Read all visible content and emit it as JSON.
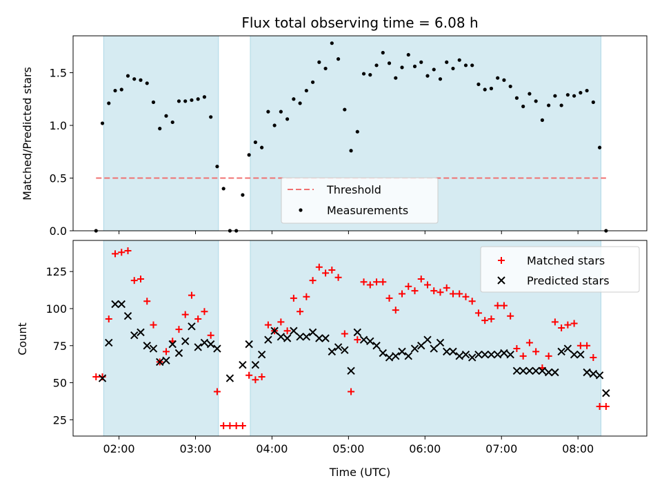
{
  "chart_data": [
    {
      "type": "scatter",
      "title": "Flux total observing time = 6.08 h",
      "xlabel": "",
      "ylabel": "Matched/Predicted stars",
      "ylim": [
        0,
        1.85
      ],
      "yticks": [
        "0.0",
        "0.5",
        "1.0",
        "1.5"
      ],
      "xlim": [
        "01:24",
        "08:54"
      ],
      "x_tick_labels": [
        "02:00",
        "03:00",
        "04:00",
        "05:00",
        "06:00",
        "07:00",
        "08:00"
      ],
      "shaded_intervals": [
        [
          "01:48",
          "03:18"
        ],
        [
          "03:43",
          "08:18"
        ]
      ],
      "threshold": {
        "name": "Threshold",
        "value": 0.5,
        "color": "#f07070"
      },
      "legend_position": "lower-center",
      "series": [
        {
          "name": "Measurements",
          "color": "#000000",
          "x": [
            "01:42",
            "01:47",
            "01:52",
            "01:57",
            "02:02",
            "02:07",
            "02:12",
            "02:17",
            "02:22",
            "02:27",
            "02:32",
            "02:37",
            "02:42",
            "02:47",
            "02:52",
            "02:57",
            "03:02",
            "03:07",
            "03:12",
            "03:17",
            "03:22",
            "03:27",
            "03:32",
            "03:37",
            "03:42",
            "03:47",
            "03:52",
            "03:57",
            "04:02",
            "04:07",
            "04:12",
            "04:17",
            "04:22",
            "04:27",
            "04:32",
            "04:37",
            "04:42",
            "04:47",
            "04:52",
            "04:57",
            "05:02",
            "05:07",
            "05:12",
            "05:17",
            "05:22",
            "05:27",
            "05:32",
            "05:37",
            "05:42",
            "05:47",
            "05:52",
            "05:57",
            "06:02",
            "06:07",
            "06:12",
            "06:17",
            "06:22",
            "06:27",
            "06:32",
            "06:37",
            "06:42",
            "06:47",
            "06:52",
            "06:57",
            "07:02",
            "07:07",
            "07:12",
            "07:17",
            "07:22",
            "07:27",
            "07:32",
            "07:37",
            "07:42",
            "07:47",
            "07:52",
            "07:57",
            "08:02",
            "08:07",
            "08:12",
            "08:17",
            "08:22"
          ],
          "y": [
            0.0,
            1.02,
            1.21,
            1.33,
            1.34,
            1.47,
            1.44,
            1.43,
            1.4,
            1.22,
            0.97,
            1.09,
            1.03,
            1.23,
            1.23,
            1.24,
            1.25,
            1.27,
            1.08,
            0.61,
            0.4,
            0.0,
            0.0,
            0.34,
            0.72,
            0.84,
            0.79,
            1.13,
            1.0,
            1.13,
            1.06,
            1.25,
            1.21,
            1.33,
            1.41,
            1.6,
            1.54,
            1.78,
            1.63,
            1.15,
            0.76,
            0.94,
            1.49,
            1.48,
            1.57,
            1.69,
            1.59,
            1.45,
            1.55,
            1.67,
            1.56,
            1.6,
            1.47,
            1.53,
            1.44,
            1.6,
            1.54,
            1.62,
            1.57,
            1.57,
            1.39,
            1.34,
            1.35,
            1.45,
            1.43,
            1.37,
            1.26,
            1.18,
            1.3,
            1.23,
            1.05,
            1.19,
            1.28,
            1.19,
            1.29,
            1.28,
            1.31,
            1.33,
            1.22,
            0.79,
            0.0
          ]
        }
      ]
    },
    {
      "type": "scatter",
      "title": "",
      "xlabel": "Time (UTC)",
      "ylabel": "Count",
      "ylim": [
        14,
        146
      ],
      "yticks": [
        "25",
        "50",
        "75",
        "100",
        "125"
      ],
      "xlim": [
        "01:24",
        "08:54"
      ],
      "x_tick_labels": [
        "02:00",
        "03:00",
        "04:00",
        "05:00",
        "06:00",
        "07:00",
        "08:00"
      ],
      "shaded_intervals": [
        [
          "01:48",
          "03:18"
        ],
        [
          "03:43",
          "08:18"
        ]
      ],
      "legend_position": "upper-right",
      "series": [
        {
          "name": "Matched stars",
          "color": "#ff0000",
          "marker": "plus",
          "x": [
            "01:42",
            "01:47",
            "01:52",
            "01:57",
            "02:02",
            "02:07",
            "02:12",
            "02:17",
            "02:22",
            "02:27",
            "02:32",
            "02:37",
            "02:42",
            "02:47",
            "02:52",
            "02:57",
            "03:02",
            "03:07",
            "03:12",
            "03:17",
            "03:22",
            "03:27",
            "03:32",
            "03:37",
            "03:42",
            "03:47",
            "03:52",
            "03:57",
            "04:02",
            "04:07",
            "04:12",
            "04:17",
            "04:22",
            "04:27",
            "04:32",
            "04:37",
            "04:42",
            "04:47",
            "04:52",
            "04:57",
            "05:02",
            "05:07",
            "05:12",
            "05:17",
            "05:22",
            "05:27",
            "05:32",
            "05:37",
            "05:42",
            "05:47",
            "05:52",
            "05:57",
            "06:02",
            "06:07",
            "06:12",
            "06:17",
            "06:22",
            "06:27",
            "06:32",
            "06:37",
            "06:42",
            "06:47",
            "06:52",
            "06:57",
            "07:02",
            "07:07",
            "07:12",
            "07:17",
            "07:22",
            "07:27",
            "07:32",
            "07:37",
            "07:42",
            "07:47",
            "07:52",
            "07:57",
            "08:02",
            "08:07",
            "08:12",
            "08:17",
            "08:22"
          ],
          "y": [
            54,
            54,
            93,
            137,
            138,
            139,
            119,
            120,
            105,
            89,
            64,
            71,
            78,
            86,
            96,
            109,
            93,
            98,
            82,
            44,
            21,
            21,
            21,
            21,
            55,
            52,
            54,
            89,
            85,
            91,
            85,
            107,
            98,
            108,
            119,
            128,
            124,
            126,
            121,
            83,
            44,
            79,
            118,
            116,
            118,
            118,
            107,
            99,
            110,
            115,
            112,
            120,
            116,
            112,
            111,
            114,
            110,
            110,
            108,
            105,
            97,
            92,
            93,
            102,
            102,
            95,
            73,
            68,
            77,
            71,
            60,
            68,
            91,
            87,
            89,
            90,
            75,
            75,
            67,
            34,
            34
          ]
        },
        {
          "name": "Predicted stars",
          "color": "#000000",
          "marker": "x",
          "x": [
            "01:47",
            "01:52",
            "01:57",
            "02:02",
            "02:07",
            "02:12",
            "02:17",
            "02:22",
            "02:27",
            "02:32",
            "02:37",
            "02:42",
            "02:47",
            "02:52",
            "02:57",
            "03:02",
            "03:07",
            "03:12",
            "03:17",
            "03:27",
            "03:37",
            "03:42",
            "03:47",
            "03:52",
            "03:57",
            "04:02",
            "04:07",
            "04:12",
            "04:17",
            "04:22",
            "04:27",
            "04:32",
            "04:37",
            "04:42",
            "04:47",
            "04:52",
            "04:57",
            "05:02",
            "05:07",
            "05:12",
            "05:17",
            "05:22",
            "05:27",
            "05:32",
            "05:37",
            "05:42",
            "05:47",
            "05:52",
            "05:57",
            "06:02",
            "06:07",
            "06:12",
            "06:17",
            "06:22",
            "06:27",
            "06:32",
            "06:37",
            "06:42",
            "06:47",
            "06:52",
            "06:57",
            "07:02",
            "07:07",
            "07:12",
            "07:17",
            "07:22",
            "07:27",
            "07:32",
            "07:37",
            "07:42",
            "07:47",
            "07:52",
            "07:57",
            "08:02",
            "08:07",
            "08:12",
            "08:17",
            "08:22"
          ],
          "y": [
            53,
            77,
            103,
            103,
            95,
            82,
            84,
            75,
            73,
            64,
            65,
            76,
            70,
            78,
            88,
            74,
            77,
            76,
            73,
            53,
            62,
            76,
            62,
            69,
            79,
            85,
            81,
            80,
            85,
            81,
            81,
            84,
            80,
            80,
            71,
            74,
            72,
            58,
            84,
            79,
            78,
            75,
            70,
            67,
            68,
            71,
            68,
            73,
            75,
            79,
            73,
            77,
            71,
            71,
            68,
            69,
            67,
            69,
            69,
            69,
            69,
            70,
            69,
            58,
            58,
            58,
            58,
            58,
            57,
            57,
            71,
            73,
            69,
            69,
            57,
            56,
            55,
            43
          ]
        }
      ]
    }
  ]
}
